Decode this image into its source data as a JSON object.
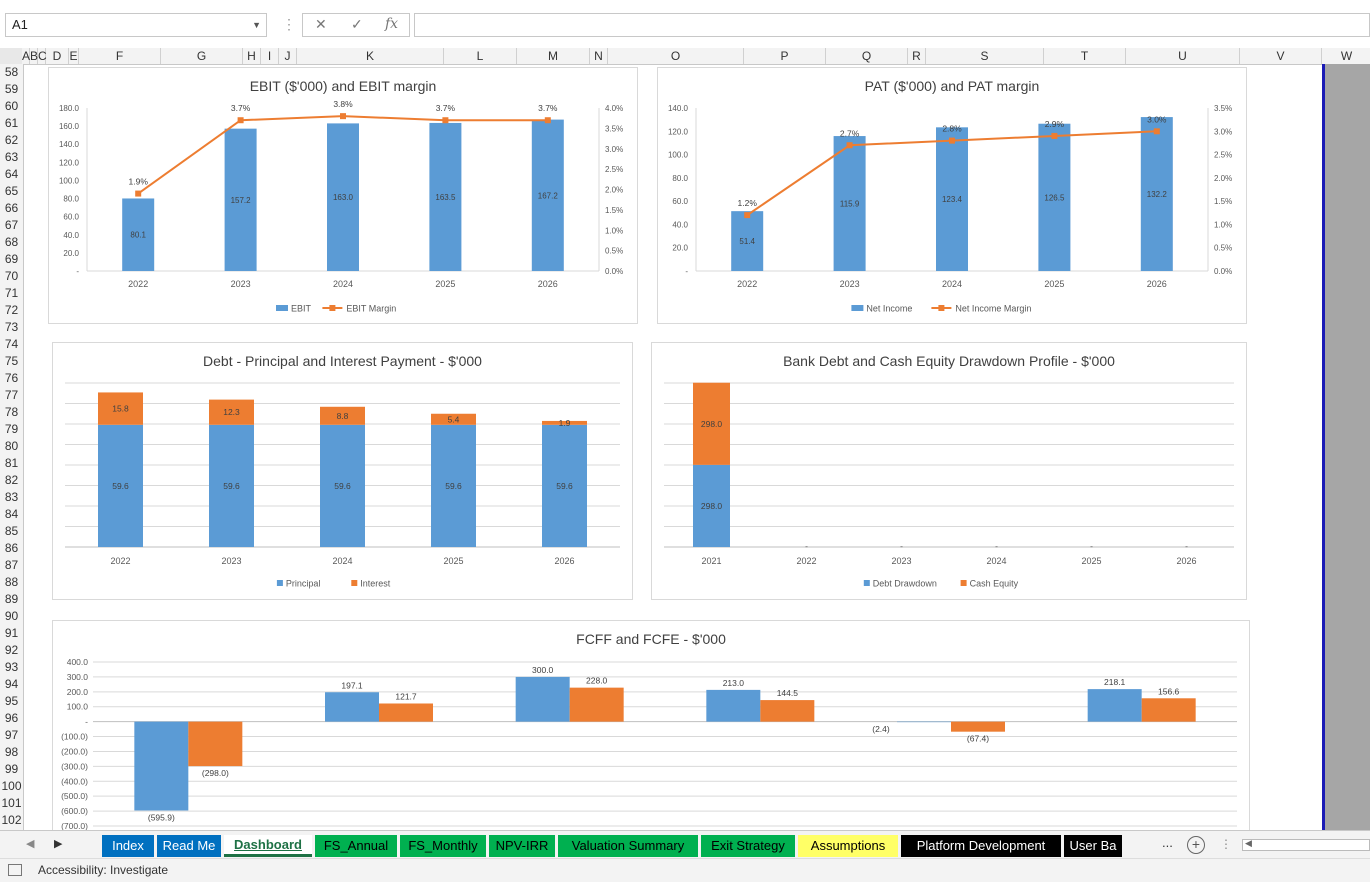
{
  "formula_bar": {
    "name_box": "A1",
    "cancel_glyph": "✕",
    "enter_glyph": "✓",
    "fx_glyph": "fx",
    "formula": ""
  },
  "columns": [
    {
      "label": "A",
      "w": 8
    },
    {
      "label": "B",
      "w": 8
    },
    {
      "label": "C",
      "w": 8
    },
    {
      "label": "D",
      "w": 23
    },
    {
      "label": "E",
      "w": 10
    },
    {
      "label": "F",
      "w": 82
    },
    {
      "label": "G",
      "w": 82
    },
    {
      "label": "H",
      "w": 18
    },
    {
      "label": "I",
      "w": 18
    },
    {
      "label": "J",
      "w": 18
    },
    {
      "label": "K",
      "w": 147
    },
    {
      "label": "L",
      "w": 73
    },
    {
      "label": "M",
      "w": 73
    },
    {
      "label": "N",
      "w": 18
    },
    {
      "label": "O",
      "w": 136
    },
    {
      "label": "P",
      "w": 82
    },
    {
      "label": "Q",
      "w": 82
    },
    {
      "label": "R",
      "w": 18
    },
    {
      "label": "S",
      "w": 118
    },
    {
      "label": "T",
      "w": 82
    },
    {
      "label": "U",
      "w": 114
    },
    {
      "label": "V",
      "w": 82
    },
    {
      "label": "W",
      "w": 50
    }
  ],
  "rows": [
    "58",
    "59",
    "60",
    "61",
    "62",
    "63",
    "64",
    "65",
    "66",
    "67",
    "68",
    "69",
    "70",
    "71",
    "72",
    "73",
    "74",
    "75",
    "76",
    "77",
    "78",
    "79",
    "80",
    "81",
    "82",
    "83",
    "84",
    "85",
    "86",
    "87",
    "88",
    "89",
    "90",
    "91",
    "92",
    "93",
    "94",
    "95",
    "96",
    "97",
    "98",
    "99",
    "100",
    "101",
    "102"
  ],
  "tabs": [
    {
      "label": "Index",
      "bg": "#0070c0",
      "color": "#ffffff",
      "active": false
    },
    {
      "label": "Read Me",
      "bg": "#0070c0",
      "color": "#ffffff",
      "active": false
    },
    {
      "label": "Dashboard",
      "bg": "#ffffff",
      "color": "#1e7145",
      "active": true
    },
    {
      "label": "FS_Annual",
      "bg": "#00b050",
      "color": "#000000",
      "active": false
    },
    {
      "label": "FS_Monthly",
      "bg": "#00b050",
      "color": "#000000",
      "active": false
    },
    {
      "label": "NPV-IRR",
      "bg": "#00b050",
      "color": "#000000",
      "active": false
    },
    {
      "label": "Valuation Summary",
      "bg": "#00b050",
      "color": "#000000",
      "active": false
    },
    {
      "label": "Exit Strategy",
      "bg": "#00b050",
      "color": "#000000",
      "active": false
    },
    {
      "label": "Assumptions",
      "bg": "#ffff66",
      "color": "#000000",
      "active": false
    },
    {
      "label": "Platform Development",
      "bg": "#000000",
      "color": "#ffffff",
      "active": false
    },
    {
      "label": "User Ba",
      "bg": "#000000",
      "color": "#ffffff",
      "active": false
    }
  ],
  "tab_more": "...",
  "tab_add": "+",
  "status": {
    "accessibility": "Accessibility: Investigate"
  },
  "colors": {
    "blue": "#5b9bd5",
    "orange": "#ed7d31",
    "grid": "#d9d9d9",
    "axis_text": "#595959"
  },
  "chart_data": [
    {
      "id": "ebit",
      "type": "bar",
      "title": "EBIT ($'000) and EBIT margin",
      "categories": [
        "2022",
        "2023",
        "2024",
        "2025",
        "2026"
      ],
      "series": [
        {
          "name": "EBIT",
          "kind": "bar",
          "values": [
            80.1,
            157.2,
            163.0,
            163.5,
            167.2
          ],
          "labels": [
            "80.1",
            "157.2",
            "163.0",
            "163.5",
            "167.2"
          ]
        },
        {
          "name": "EBIT Margin",
          "kind": "line",
          "axis": "right",
          "values": [
            1.9,
            3.7,
            3.8,
            3.7,
            3.7
          ],
          "labels": [
            "1.9%",
            "3.7%",
            "3.8%",
            "3.7%",
            "3.7%"
          ]
        }
      ],
      "ylim": [
        0,
        180
      ],
      "y_ticks": [
        "-",
        "20.0",
        "40.0",
        "60.0",
        "80.0",
        "100.0",
        "120.0",
        "140.0",
        "160.0",
        "180.0"
      ],
      "y2lim": [
        0,
        4.0
      ],
      "y2_ticks": [
        "0.0%",
        "0.5%",
        "1.0%",
        "1.5%",
        "2.0%",
        "2.5%",
        "3.0%",
        "3.5%",
        "4.0%"
      ],
      "legend": "bottom",
      "grid": false
    },
    {
      "id": "pat",
      "type": "bar",
      "title": "PAT ($'000) and PAT margin",
      "categories": [
        "2022",
        "2023",
        "2024",
        "2025",
        "2026"
      ],
      "series": [
        {
          "name": "Net Income",
          "kind": "bar",
          "values": [
            51.4,
            115.9,
            123.4,
            126.5,
            132.2
          ],
          "labels": [
            "51.4",
            "115.9",
            "123.4",
            "126.5",
            "132.2"
          ]
        },
        {
          "name": "Net Income Margin",
          "kind": "line",
          "axis": "right",
          "values": [
            1.2,
            2.7,
            2.8,
            2.9,
            3.0
          ],
          "labels": [
            "1.2%",
            "2.7%",
            "2.8%",
            "2.9%",
            "3.0%"
          ]
        }
      ],
      "ylim": [
        0,
        140
      ],
      "y_ticks": [
        "-",
        "20.0",
        "40.0",
        "60.0",
        "80.0",
        "100.0",
        "120.0",
        "140.0"
      ],
      "y2lim": [
        0,
        3.5
      ],
      "y2_ticks": [
        "0.0%",
        "0.5%",
        "1.0%",
        "1.5%",
        "2.0%",
        "2.5%",
        "3.0%",
        "3.5%"
      ],
      "legend": "bottom",
      "grid": false
    },
    {
      "id": "debt",
      "type": "bar",
      "stacked": true,
      "title": "Debt - Principal and Interest Payment - $'000",
      "categories": [
        "2022",
        "2023",
        "2024",
        "2025",
        "2026"
      ],
      "series": [
        {
          "name": "Principal",
          "values": [
            59.6,
            59.6,
            59.6,
            59.6,
            59.6
          ],
          "labels": [
            "59.6",
            "59.6",
            "59.6",
            "59.6",
            "59.6"
          ]
        },
        {
          "name": "Interest",
          "values": [
            15.8,
            12.3,
            8.8,
            5.4,
            1.9
          ],
          "labels": [
            "15.8",
            "12.3",
            "8.8",
            "5.4",
            "1.9"
          ]
        }
      ],
      "ylim": [
        0,
        80
      ],
      "legend": "bottom",
      "grid": true
    },
    {
      "id": "drawdown",
      "type": "bar",
      "stacked": true,
      "title": "Bank Debt and Cash Equity Drawdown Profile - $'000",
      "categories": [
        "2021",
        "2022",
        "2023",
        "2024",
        "2025",
        "2026"
      ],
      "series": [
        {
          "name": "Debt Drawdown",
          "values": [
            298.0,
            0,
            0,
            0,
            0,
            0
          ],
          "labels": [
            "298.0",
            "-",
            "-",
            "-",
            "-",
            "-"
          ]
        },
        {
          "name": "Cash Equity",
          "values": [
            298.0,
            0,
            0,
            0,
            0,
            0
          ],
          "labels": [
            "298.0",
            "",
            "",
            "",
            "",
            ""
          ]
        }
      ],
      "ylim": [
        0,
        700
      ],
      "legend": "bottom",
      "grid": true
    },
    {
      "id": "fcff",
      "type": "bar",
      "title": "FCFF and FCFE - $'000",
      "categories": [
        "",
        "",
        "",
        "",
        "",
        ""
      ],
      "series": [
        {
          "name": "FCFF",
          "values": [
            -595.9,
            197.1,
            300.0,
            213.0,
            -2.4,
            218.1
          ],
          "labels": [
            "(595.9)",
            "197.1",
            "300.0",
            "213.0",
            "(2.4)",
            "218.1"
          ]
        },
        {
          "name": "FCFE",
          "values": [
            -298.0,
            121.7,
            228.0,
            144.5,
            -67.4,
            156.6
          ],
          "labels": [
            "(298.0)",
            "121.7",
            "228.0",
            "144.5",
            "(67.4)",
            "156.6"
          ]
        }
      ],
      "ylim": [
        -700,
        400
      ],
      "y_ticks": [
        "(700.0)",
        "(600.0)",
        "(500.0)",
        "(400.0)",
        "(300.0)",
        "(200.0)",
        "(100.0)",
        "-",
        "100.0",
        "200.0",
        "300.0",
        "400.0"
      ],
      "grid": true
    }
  ]
}
